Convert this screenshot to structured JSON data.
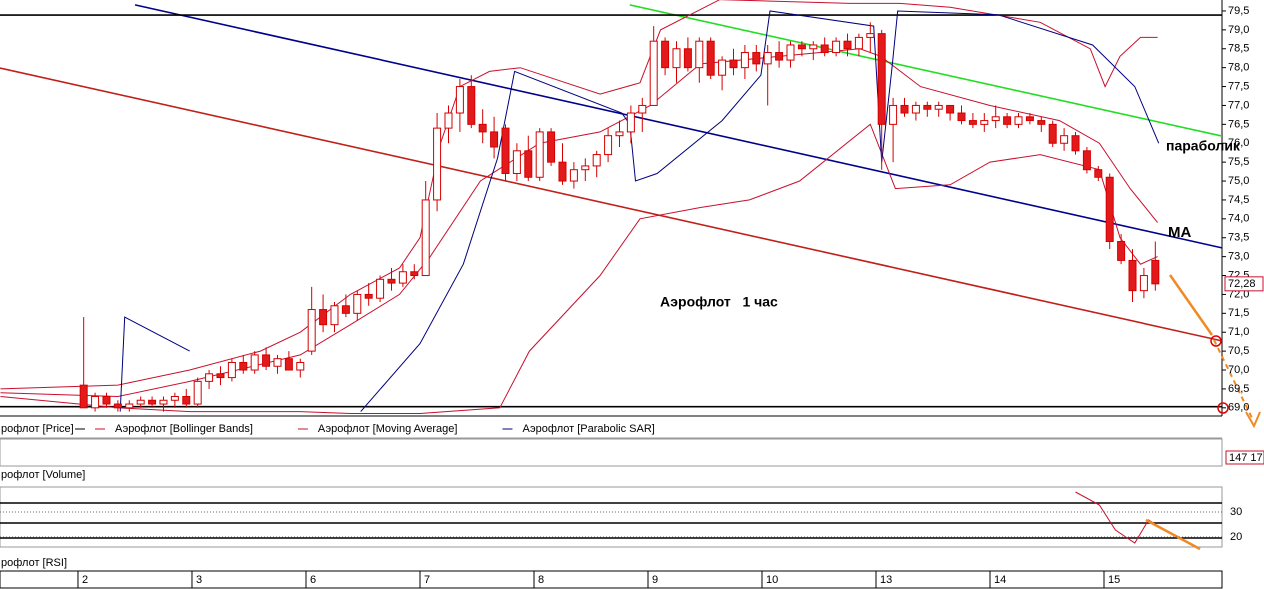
{
  "chart_data": {
    "type": "candlestick",
    "annotations": [
      "Аэрофлот   1 час",
      "МА",
      "параболик"
    ],
    "xlim": [
      -7.34,
      99.85
    ],
    "xticks": [
      {
        "value": -0.5,
        "label": "2"
      },
      {
        "value": 9.5,
        "label": "3"
      },
      {
        "value": 19.5,
        "label": "6"
      },
      {
        "value": 29.5,
        "label": "7"
      },
      {
        "value": 39.5,
        "label": "8"
      },
      {
        "value": 49.5,
        "label": "9"
      },
      {
        "value": 59.5,
        "label": "10"
      },
      {
        "value": 69.5,
        "label": "13"
      },
      {
        "value": 79.5,
        "label": "14"
      },
      {
        "value": 89.5,
        "label": "15"
      }
    ],
    "ylim": [
      68.81,
      79.79
    ],
    "yticks": [
      {
        "value": 69.0,
        "label": "69,0"
      },
      {
        "value": 69.5,
        "label": "69,5"
      },
      {
        "value": 70.0,
        "label": "70,0"
      },
      {
        "value": 70.5,
        "label": "70,5"
      },
      {
        "value": 71.0,
        "label": "71,0"
      },
      {
        "value": 71.5,
        "label": "71,5"
      },
      {
        "value": 72.0,
        "label": "72,0"
      },
      {
        "value": 72.5,
        "label": "72,5"
      },
      {
        "value": 73.0,
        "label": "73,0"
      },
      {
        "value": 73.5,
        "label": "73,5"
      },
      {
        "value": 74.0,
        "label": "74,0"
      },
      {
        "value": 74.5,
        "label": "74,5"
      },
      {
        "value": 75.0,
        "label": "75,0"
      },
      {
        "value": 75.5,
        "label": "75,5"
      },
      {
        "value": 76.0,
        "label": "76,0"
      },
      {
        "value": 76.5,
        "label": "76,5"
      },
      {
        "value": 77.0,
        "label": "77,0"
      },
      {
        "value": 77.5,
        "label": "77,5"
      },
      {
        "value": 78.0,
        "label": "78,0"
      },
      {
        "value": 78.5,
        "label": "78,5"
      },
      {
        "value": 79.0,
        "label": "79,0"
      },
      {
        "value": 79.5,
        "label": "79,5"
      }
    ],
    "last_price": {
      "value": 72.28,
      "label": "72,28"
    },
    "price_legend": "рофлот [Price]",
    "up_color": "#ffffff",
    "down_color": "#e31a1c",
    "candle_edge": "#d40000",
    "open": [
      69.6,
      69.0,
      69.3,
      69.1,
      69.0,
      69.1,
      69.2,
      69.1,
      69.2,
      69.3,
      69.1,
      69.7,
      69.9,
      69.8,
      70.2,
      70.0,
      70.4,
      70.1,
      70.3,
      70.0,
      70.5,
      71.6,
      71.2,
      71.7,
      71.5,
      72.0,
      71.9,
      72.4,
      72.3,
      72.6,
      72.5,
      74.5,
      76.4,
      76.8,
      77.5,
      76.5,
      76.3,
      76.4,
      75.2,
      75.8,
      75.1,
      76.3,
      75.5,
      75.0,
      75.3,
      75.4,
      75.7,
      76.2,
      76.3,
      76.8,
      77.0,
      78.7,
      78.0,
      78.5,
      78.0,
      78.7,
      77.8,
      78.2,
      78.0,
      78.4,
      78.1,
      78.4,
      78.2,
      78.6,
      78.5,
      78.6,
      78.4,
      78.7,
      78.5,
      78.8,
      78.9,
      76.5,
      77.0,
      76.8,
      77.0,
      76.9,
      77.0,
      76.8,
      76.6,
      76.5,
      76.6,
      76.7,
      76.5,
      76.7,
      76.6,
      76.5,
      76.0,
      76.2,
      75.8,
      75.3,
      75.1,
      73.4,
      72.9,
      72.1,
      72.9
    ],
    "high": [
      71.4,
      69.4,
      69.4,
      69.2,
      69.2,
      69.3,
      69.3,
      69.3,
      69.4,
      69.5,
      69.8,
      70.0,
      70.1,
      70.3,
      70.4,
      70.5,
      70.6,
      70.4,
      70.5,
      70.3,
      72.2,
      72.0,
      71.8,
      72.0,
      72.1,
      72.3,
      72.5,
      72.7,
      72.8,
      72.8,
      75.0,
      76.8,
      77.0,
      77.7,
      77.8,
      76.9,
      76.7,
      76.5,
      76.0,
      76.2,
      76.4,
      76.4,
      76.0,
      75.5,
      75.6,
      75.8,
      76.4,
      76.6,
      77.0,
      77.2,
      79.1,
      78.8,
      78.7,
      78.8,
      78.8,
      78.8,
      78.3,
      78.5,
      78.6,
      78.6,
      78.6,
      78.7,
      78.7,
      78.7,
      78.7,
      78.8,
      78.8,
      78.9,
      78.9,
      79.2,
      79.0,
      77.2,
      77.2,
      77.1,
      77.1,
      77.1,
      77.0,
      77.0,
      76.8,
      76.8,
      77.0,
      76.8,
      76.8,
      76.8,
      76.7,
      76.6,
      76.4,
      76.3,
      75.9,
      75.4,
      75.2,
      73.6,
      73.2,
      72.7,
      73.4
    ],
    "low": [
      69.0,
      68.9,
      69.0,
      68.9,
      68.9,
      69.0,
      69.0,
      68.9,
      69.0,
      69.0,
      69.0,
      69.5,
      69.6,
      69.7,
      69.9,
      69.9,
      70.0,
      69.9,
      70.0,
      69.8,
      70.4,
      71.0,
      71.0,
      71.4,
      71.3,
      71.7,
      71.8,
      72.1,
      72.2,
      72.4,
      72.5,
      74.2,
      76.0,
      76.3,
      76.4,
      76.0,
      75.6,
      75.0,
      75.0,
      75.0,
      75.0,
      75.4,
      74.9,
      74.8,
      75.0,
      75.1,
      75.5,
      75.9,
      76.0,
      76.3,
      77.0,
      77.8,
      77.6,
      77.9,
      77.6,
      77.7,
      77.4,
      77.8,
      77.7,
      77.9,
      77.0,
      78.0,
      78.0,
      78.3,
      78.2,
      78.3,
      78.3,
      78.3,
      78.3,
      78.4,
      75.3,
      75.5,
      76.7,
      76.6,
      76.7,
      76.7,
      76.6,
      76.5,
      76.4,
      76.3,
      76.4,
      76.4,
      76.4,
      76.5,
      76.3,
      75.9,
      75.8,
      75.7,
      75.2,
      75.0,
      73.2,
      72.8,
      71.8,
      71.9,
      72.1
    ],
    "close": [
      69.0,
      69.3,
      69.1,
      69.0,
      69.1,
      69.2,
      69.1,
      69.2,
      69.3,
      69.1,
      69.7,
      69.9,
      69.8,
      70.2,
      70.0,
      70.4,
      70.1,
      70.3,
      70.0,
      70.2,
      71.6,
      71.2,
      71.7,
      71.5,
      72.0,
      71.9,
      72.4,
      72.3,
      72.6,
      72.5,
      74.5,
      76.4,
      76.8,
      77.5,
      76.5,
      76.3,
      75.9,
      75.2,
      75.8,
      75.1,
      76.3,
      75.5,
      75.0,
      75.3,
      75.4,
      75.7,
      76.2,
      76.3,
      76.8,
      77.0,
      78.7,
      78.0,
      78.5,
      78.0,
      78.7,
      77.8,
      78.2,
      78.0,
      78.4,
      78.1,
      78.4,
      78.2,
      78.6,
      78.5,
      78.6,
      78.4,
      78.7,
      78.5,
      78.8,
      78.9,
      76.5,
      77.0,
      76.8,
      77.0,
      76.9,
      77.0,
      76.8,
      76.6,
      76.5,
      76.6,
      76.7,
      76.5,
      76.7,
      76.6,
      76.5,
      76.0,
      76.2,
      75.8,
      75.3,
      75.1,
      73.4,
      72.9,
      72.1,
      72.5,
      72.28
    ],
    "series": [
      {
        "name": "Аэрофлот [Bollinger Bands]",
        "color": "#c8102e",
        "x": [
          -7.3,
          3.0,
          9.3,
          15.5,
          19.0,
          23.4,
          27.7,
          29.5,
          31.3,
          33.0,
          35.6,
          38.3,
          45.3,
          48.8,
          50.6,
          55.8,
          67.2,
          71.6,
          76.0,
          83.9,
          88.3,
          89.6,
          90.9,
          92.7,
          94.2
        ],
        "values": [
          69.5,
          69.6,
          70.0,
          70.5,
          71.0,
          72.0,
          72.7,
          73.5,
          76.0,
          77.5,
          77.9,
          78.0,
          77.3,
          77.6,
          79.0,
          79.8,
          79.7,
          79.7,
          79.6,
          79.2,
          78.5,
          77.5,
          78.3,
          78.8,
          78.8
        ]
      },
      {
        "name": "Аэрофлот [Bollinger Bands]",
        "color": "#c8102e",
        "x": [
          -7.3,
          3.0,
          9.3,
          19.0,
          23.4,
          29.5,
          36.5,
          39.1,
          45.3,
          48.8,
          54.1,
          58.4,
          62.8,
          69.0,
          71.2,
          76.0,
          79.5,
          83.9,
          89.1,
          90.9,
          92.7,
          94.2
        ],
        "values": [
          69.3,
          69.0,
          68.9,
          68.9,
          68.85,
          68.85,
          69.0,
          70.5,
          72.5,
          74.0,
          74.3,
          74.5,
          75.0,
          76.5,
          74.8,
          74.9,
          75.5,
          75.7,
          75.3,
          73.5,
          72.8,
          73.0
        ]
      },
      {
        "name": "Аэрофлот [Moving Average]",
        "color": "#c8102e",
        "x": [
          -7.3,
          3.0,
          9.3,
          19.0,
          23.4,
          27.7,
          30.4,
          34.8,
          40.0,
          45.3,
          49.7,
          54.1,
          61.1,
          68.1,
          69.9,
          73.4,
          79.5,
          85.6,
          89.1,
          91.8,
          94.2
        ],
        "values": [
          69.4,
          69.3,
          69.7,
          70.4,
          71.2,
          72.0,
          73.0,
          75.0,
          76.0,
          76.3,
          77.0,
          78.1,
          78.3,
          78.5,
          78.3,
          77.5,
          77.0,
          76.6,
          76.0,
          74.8,
          73.9
        ]
      },
      {
        "name": "Аэрофлот [Parabolic SAR]",
        "color": "#00007f",
        "x": [
          3.2,
          3.6,
          9.3,
          null,
          24.3,
          29.5,
          33.3,
          36.3,
          37.8,
          47.2,
          47.9,
          48.4,
          50.3,
          56.0,
          59.4,
          60.2,
          69.3,
          70.0,
          70.9,
          71.4,
          80.2,
          88.5,
          92.2,
          94.3
        ],
        "values": [
          68.9,
          71.4,
          70.5,
          null,
          68.9,
          70.7,
          72.8,
          75.6,
          77.9,
          76.8,
          76.5,
          75.0,
          75.2,
          76.6,
          77.8,
          79.5,
          79.1,
          75.5,
          78.0,
          79.5,
          79.4,
          78.6,
          77.5,
          76.0
        ]
      }
    ],
    "trend_lines": [
      {
        "color": "#00008b",
        "x": [
          4.5,
          99.85
        ],
        "values": [
          79.66,
          73.23
        ]
      },
      {
        "color": "#c0201a",
        "x": [
          -7.34,
          99.85
        ],
        "values": [
          77.99,
          70.77
        ]
      },
      {
        "color": "#22dd22",
        "x": [
          47.9,
          99.85
        ],
        "values": [
          79.66,
          76.19
        ]
      },
      {
        "color": "#000000",
        "x": [
          -7.34,
          99.85
        ],
        "values": [
          79.39,
          79.39
        ]
      },
      {
        "color": "#000000",
        "x": [
          -7.34,
          99.85
        ],
        "values": [
          69.03,
          69.03
        ]
      }
    ],
    "volume": {
      "legend": "рофлот [Volume]",
      "last": "147 17"
    },
    "rsi": {
      "legend": "рофлот [RSI]",
      "color": "#c8102e",
      "ylim": [
        16.4,
        38.8
      ],
      "yticks": [
        30,
        20
      ],
      "levels": [
        33.6,
        25.6,
        19.6
      ],
      "x": [
        87.0,
        89.1,
        90.5,
        92.2,
        93.4,
        94.4
      ],
      "values": [
        38.0,
        32.8,
        22.8,
        17.6,
        26.8,
        24.0
      ]
    }
  }
}
